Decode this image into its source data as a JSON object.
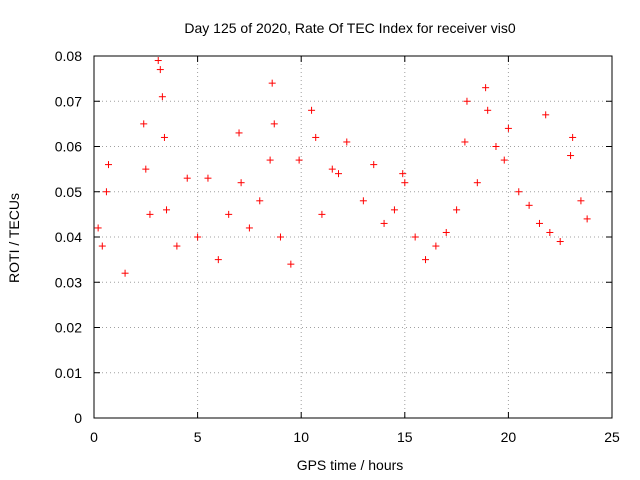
{
  "chart_data": {
    "type": "scatter",
    "title": "Day 125 of 2020, Rate Of TEC Index for receiver vis0",
    "xlabel": "GPS time / hours",
    "ylabel": "ROTI / TECUs",
    "xlim": [
      0,
      25
    ],
    "ylim": [
      0,
      0.08
    ],
    "x_ticks": [
      "0",
      "5",
      "10",
      "15",
      "20",
      "25"
    ],
    "y_ticks": [
      "0",
      "0.01",
      "0.02",
      "0.03",
      "0.04",
      "0.05",
      "0.06",
      "0.07",
      "0.08"
    ],
    "grid": true,
    "legend": "none",
    "marker": "plus",
    "marker_color": "#ff0000",
    "series": [
      {
        "x": [
          0.2,
          0.4,
          0.6,
          0.7,
          1.5,
          2.4,
          2.5,
          2.7,
          3.1,
          3.2,
          3.3,
          3.4,
          3.5,
          4.0,
          4.5,
          5.0,
          5.5,
          6.0,
          6.5,
          7.0,
          7.1,
          7.5,
          8.0,
          8.5,
          8.6,
          8.7,
          9.0,
          9.5,
          9.9,
          10.5,
          10.7,
          11.0,
          11.5,
          11.8,
          12.2,
          13.0,
          13.5,
          14.0,
          14.5,
          14.9,
          15.0,
          15.5,
          16.0,
          16.5,
          17.0,
          17.5,
          17.9,
          18.0,
          18.5,
          18.9,
          19.0,
          19.4,
          19.8,
          20.0,
          20.5,
          21.0,
          21.5,
          21.8,
          22.0,
          22.5,
          23.0,
          23.1,
          23.5,
          23.8
        ],
        "y": [
          0.042,
          0.038,
          0.05,
          0.056,
          0.032,
          0.065,
          0.055,
          0.045,
          0.079,
          0.077,
          0.071,
          0.062,
          0.046,
          0.038,
          0.053,
          0.04,
          0.053,
          0.035,
          0.045,
          0.063,
          0.052,
          0.042,
          0.048,
          0.057,
          0.074,
          0.065,
          0.04,
          0.034,
          0.057,
          0.068,
          0.062,
          0.045,
          0.055,
          0.054,
          0.061,
          0.048,
          0.056,
          0.043,
          0.046,
          0.054,
          0.052,
          0.04,
          0.035,
          0.038,
          0.041,
          0.046,
          0.061,
          0.07,
          0.052,
          0.073,
          0.068,
          0.06,
          0.057,
          0.064,
          0.05,
          0.047,
          0.043,
          0.067,
          0.041,
          0.039,
          0.058,
          0.062,
          0.048,
          0.044
        ]
      }
    ]
  }
}
